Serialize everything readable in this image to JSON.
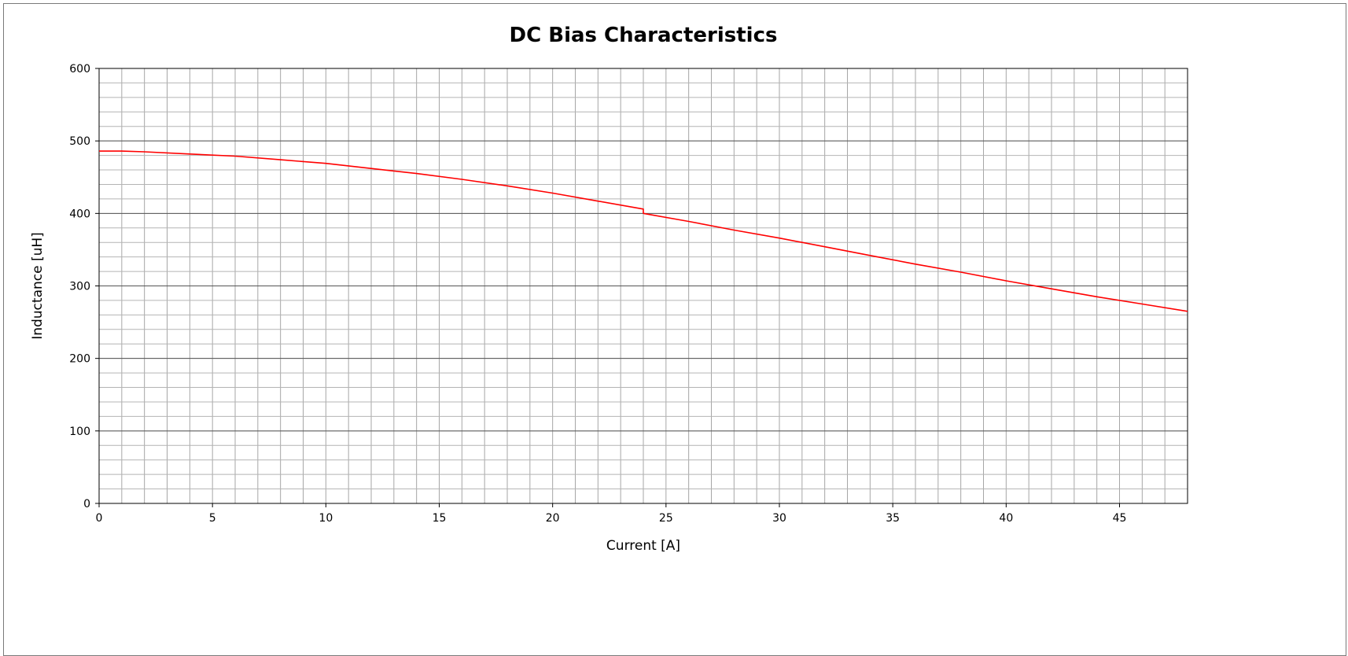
{
  "chart_data": {
    "type": "line",
    "title": "DC Bias Characteristics",
    "xlabel": "Current [A]",
    "ylabel": "Inductance [uH]",
    "xlim": [
      0,
      48
    ],
    "ylim": [
      0,
      600
    ],
    "x_ticks": [
      0,
      5,
      10,
      15,
      20,
      25,
      30,
      35,
      40,
      45
    ],
    "y_ticks": [
      0,
      100,
      200,
      300,
      400,
      500,
      600
    ],
    "x_minor_step": 1,
    "y_minor_step": 20,
    "grid": true,
    "line_color": "#ff0000",
    "series": [
      {
        "x": [
          0,
          1,
          2,
          4,
          6,
          8,
          10,
          12,
          14,
          16,
          18,
          20,
          22,
          24,
          24,
          26,
          28,
          30,
          32,
          34,
          36,
          38,
          40,
          42,
          44,
          46,
          48
        ],
        "y": [
          486,
          486,
          485,
          482,
          479,
          474,
          469,
          462,
          455,
          447,
          438,
          428,
          417,
          406,
          400,
          389,
          377,
          366,
          354,
          342,
          330,
          319,
          307,
          296,
          285,
          275,
          265
        ]
      }
    ]
  }
}
